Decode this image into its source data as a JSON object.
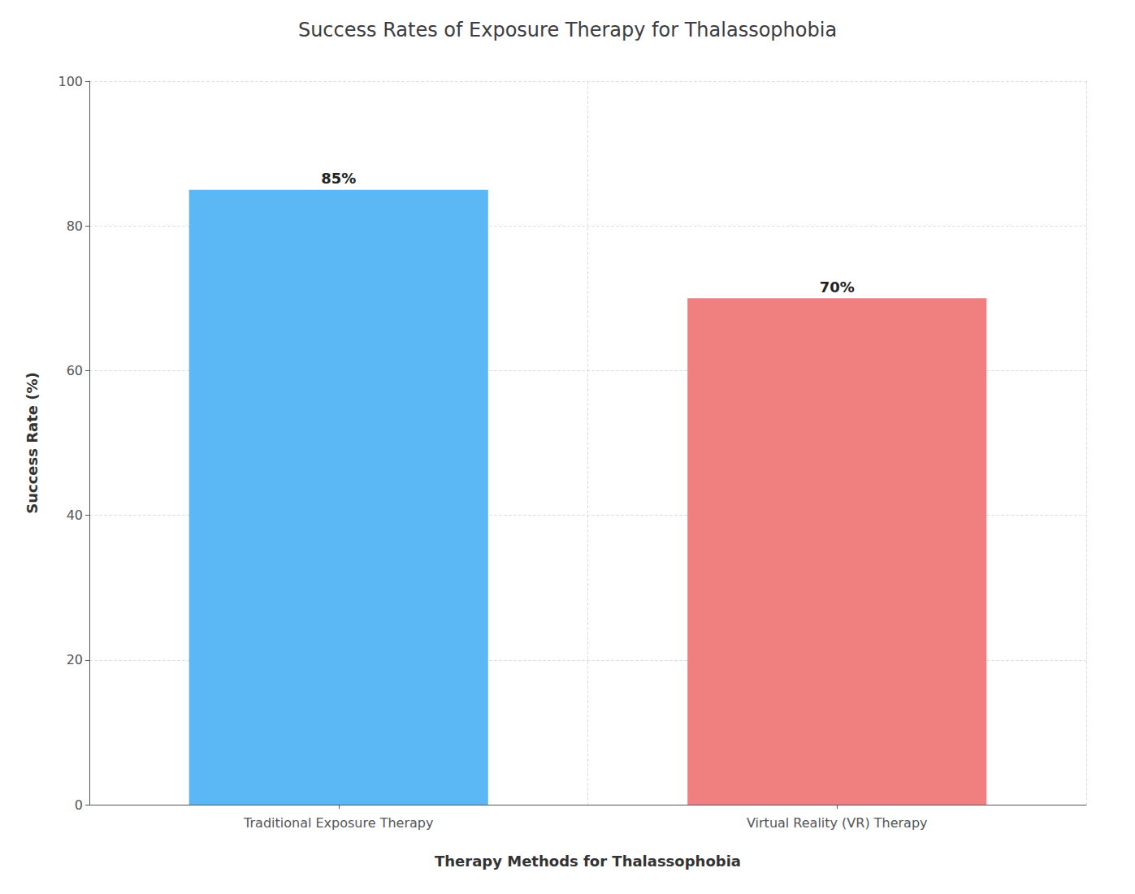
{
  "chart_data": {
    "type": "bar",
    "title": "Success Rates of Exposure Therapy for Thalassophobia",
    "x_label": "Therapy Methods for Thalassophobia",
    "y_label": "Success Rate (%)",
    "categories": [
      "Traditional Exposure Therapy",
      "Virtual Reality (VR) Therapy"
    ],
    "values": [
      85,
      70
    ],
    "value_labels": [
      "85%",
      "70%"
    ],
    "colors": [
      "#5BB8F5",
      "#F08080"
    ],
    "ylim": [
      0,
      100
    ],
    "yticks": [
      0,
      20,
      40,
      60,
      80,
      100
    ],
    "grid": true,
    "data_labels": true
  }
}
